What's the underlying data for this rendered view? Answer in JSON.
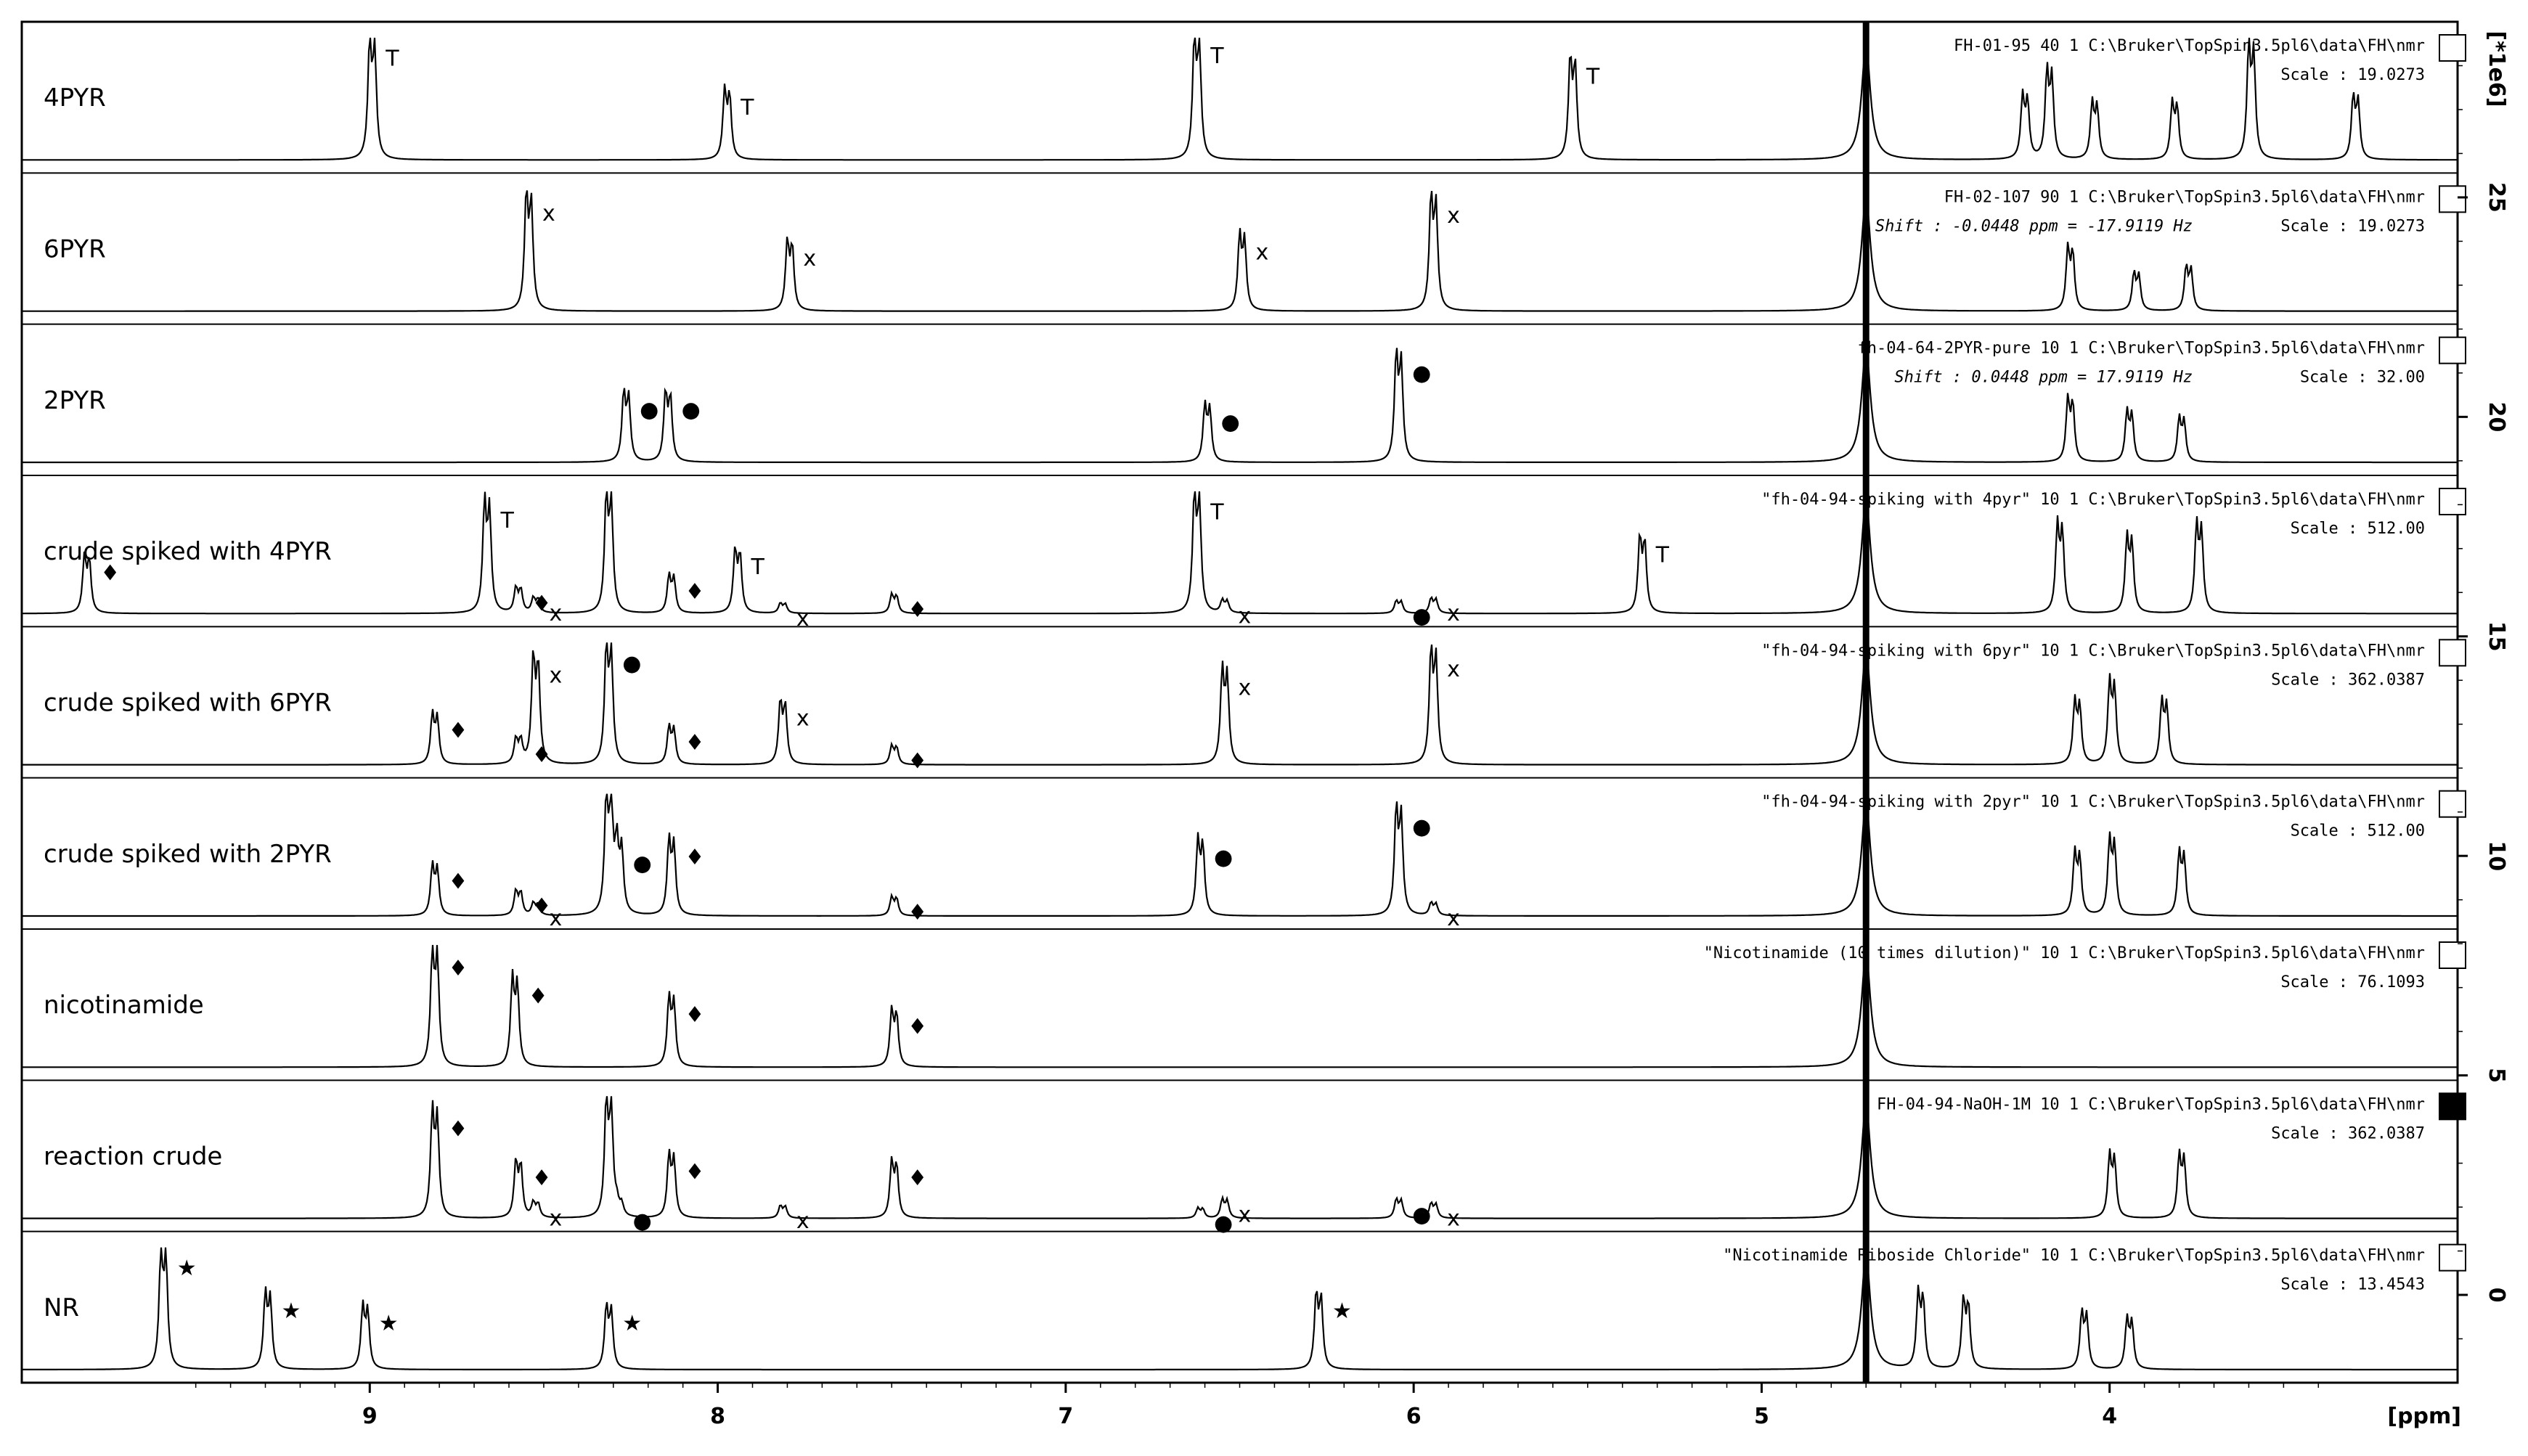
{
  "chart_data": {
    "type": "line",
    "title": "",
    "xlabel": "[ppm]",
    "ylabel": "[*1e6]",
    "xlim": [
      10.0,
      3.0
    ],
    "ylim": [
      -2,
      29
    ],
    "x_ticks": [
      "9",
      "8",
      "7",
      "6",
      "5",
      "4"
    ],
    "y_ticks": [
      "0",
      "5",
      "10",
      "15",
      "20",
      "25"
    ],
    "solvent_peak_ppm": 4.7,
    "traces": [
      {
        "label": "4PYR",
        "header": "FH-01-95  40  1  C:\\Bruker\\TopSpin3.5pl6\\data\\FH\\nmr",
        "scale": "Scale : 19.0273",
        "peaks": [
          {
            "ppm": 9.0,
            "h": 0.95,
            "mark": "T"
          },
          {
            "ppm": 7.98,
            "h": 0.55,
            "mark": "T"
          },
          {
            "ppm": 6.63,
            "h": 0.97,
            "mark": "T"
          },
          {
            "ppm": 5.55,
            "h": 0.8,
            "mark": "T"
          },
          {
            "ppm": 4.25,
            "h": 0.5,
            "mark": ""
          },
          {
            "ppm": 4.18,
            "h": 0.7,
            "mark": ""
          },
          {
            "ppm": 4.05,
            "h": 0.45,
            "mark": ""
          },
          {
            "ppm": 3.82,
            "h": 0.45,
            "mark": ""
          },
          {
            "ppm": 3.6,
            "h": 0.9,
            "mark": ""
          },
          {
            "ppm": 3.3,
            "h": 0.5,
            "mark": ""
          }
        ]
      },
      {
        "label": "6PYR",
        "header": "FH-02-107  90  1  C:\\Bruker\\TopSpin3.5pl6\\data\\FH\\nmr",
        "scale": "Scale : 19.0273",
        "shift": "Shift : -0.0448 ppm = -17.9119 Hz",
        "peaks": [
          {
            "ppm": 8.55,
            "h": 0.92,
            "mark": "x"
          },
          {
            "ppm": 7.8,
            "h": 0.55,
            "mark": "x"
          },
          {
            "ppm": 6.5,
            "h": 0.6,
            "mark": "x"
          },
          {
            "ppm": 5.95,
            "h": 0.9,
            "mark": "x"
          },
          {
            "ppm": 4.12,
            "h": 0.5,
            "mark": ""
          },
          {
            "ppm": 3.93,
            "h": 0.3,
            "mark": ""
          },
          {
            "ppm": 3.78,
            "h": 0.35,
            "mark": ""
          }
        ]
      },
      {
        "label": "2PYR",
        "header": "fh-04-64-2PYR-pure  10  1  C:\\Bruker\\TopSpin3.5pl6\\data\\FH\\nmr",
        "scale": "Scale : 32.00",
        "shift": "Shift : 0.0448 ppm = 17.9119 Hz",
        "peaks": [
          {
            "ppm": 8.27,
            "h": 0.55,
            "mark": "●"
          },
          {
            "ppm": 8.15,
            "h": 0.55,
            "mark": "●"
          },
          {
            "ppm": 6.6,
            "h": 0.45,
            "mark": "●"
          },
          {
            "ppm": 6.05,
            "h": 0.85,
            "mark": "●"
          },
          {
            "ppm": 4.12,
            "h": 0.5,
            "mark": ""
          },
          {
            "ppm": 3.95,
            "h": 0.4,
            "mark": ""
          },
          {
            "ppm": 3.8,
            "h": 0.35,
            "mark": ""
          }
        ]
      },
      {
        "label": "crude spiked with 4PYR",
        "header": "\"fh-04-94-spiking with 4pyr\"  10  1  C:\\Bruker\\TopSpin3.5pl6\\data\\FH\\nmr",
        "scale": "Scale : 512.00",
        "peaks": [
          {
            "ppm": 9.82,
            "h": 0.45,
            "mark": "♦"
          },
          {
            "ppm": 8.67,
            "h": 0.88,
            "mark": "T"
          },
          {
            "ppm": 8.58,
            "h": 0.2,
            "mark": "♦"
          },
          {
            "ppm": 8.53,
            "h": 0.12,
            "mark": "x"
          },
          {
            "ppm": 8.32,
            "h": 0.95,
            "mark": ""
          },
          {
            "ppm": 8.14,
            "h": 0.3,
            "mark": "♦"
          },
          {
            "ppm": 7.95,
            "h": 0.5,
            "mark": "T"
          },
          {
            "ppm": 7.82,
            "h": 0.08,
            "mark": "x"
          },
          {
            "ppm": 7.5,
            "h": 0.15,
            "mark": "♦"
          },
          {
            "ppm": 6.63,
            "h": 0.95,
            "mark": "T"
          },
          {
            "ppm": 6.55,
            "h": 0.1,
            "mark": "x"
          },
          {
            "ppm": 6.05,
            "h": 0.1,
            "mark": "●"
          },
          {
            "ppm": 5.95,
            "h": 0.12,
            "mark": "x"
          },
          {
            "ppm": 5.35,
            "h": 0.6,
            "mark": "T"
          },
          {
            "ppm": 4.15,
            "h": 0.7,
            "mark": ""
          },
          {
            "ppm": 3.95,
            "h": 0.6,
            "mark": ""
          },
          {
            "ppm": 3.75,
            "h": 0.7,
            "mark": ""
          }
        ]
      },
      {
        "label": "crude spiked with 6PYR",
        "header": "\"fh-04-94-spiking with 6pyr\"  10  1  C:\\Bruker\\TopSpin3.5pl6\\data\\FH\\nmr",
        "scale": "Scale : 362.0387",
        "peaks": [
          {
            "ppm": 8.82,
            "h": 0.4,
            "mark": "♦"
          },
          {
            "ppm": 8.58,
            "h": 0.2,
            "mark": "♦"
          },
          {
            "ppm": 8.53,
            "h": 0.85,
            "mark": "x"
          },
          {
            "ppm": 8.32,
            "h": 0.95,
            "mark": "●"
          },
          {
            "ppm": 8.14,
            "h": 0.3,
            "mark": "♦"
          },
          {
            "ppm": 7.82,
            "h": 0.5,
            "mark": "x"
          },
          {
            "ppm": 7.5,
            "h": 0.15,
            "mark": "♦"
          },
          {
            "ppm": 6.55,
            "h": 0.75,
            "mark": "x"
          },
          {
            "ppm": 5.95,
            "h": 0.9,
            "mark": "x"
          },
          {
            "ppm": 4.1,
            "h": 0.5,
            "mark": ""
          },
          {
            "ppm": 4.0,
            "h": 0.65,
            "mark": ""
          },
          {
            "ppm": 3.85,
            "h": 0.5,
            "mark": ""
          }
        ]
      },
      {
        "label": "crude spiked with 2PYR",
        "header": "\"fh-04-94-spiking with 2pyr\"  10  1  C:\\Bruker\\TopSpin3.5pl6\\data\\FH\\nmr",
        "scale": "Scale : 512.00",
        "peaks": [
          {
            "ppm": 8.82,
            "h": 0.4,
            "mark": "♦"
          },
          {
            "ppm": 8.58,
            "h": 0.2,
            "mark": "♦"
          },
          {
            "ppm": 8.53,
            "h": 0.1,
            "mark": "x"
          },
          {
            "ppm": 8.32,
            "h": 0.95,
            "mark": ""
          },
          {
            "ppm": 8.29,
            "h": 0.55,
            "mark": "●"
          },
          {
            "ppm": 8.14,
            "h": 0.6,
            "mark": "♦"
          },
          {
            "ppm": 7.5,
            "h": 0.15,
            "mark": "♦"
          },
          {
            "ppm": 6.62,
            "h": 0.6,
            "mark": "●"
          },
          {
            "ppm": 6.05,
            "h": 0.85,
            "mark": "●"
          },
          {
            "ppm": 5.95,
            "h": 0.1,
            "mark": "x"
          },
          {
            "ppm": 4.1,
            "h": 0.5,
            "mark": ""
          },
          {
            "ppm": 4.0,
            "h": 0.6,
            "mark": ""
          },
          {
            "ppm": 3.8,
            "h": 0.5,
            "mark": ""
          }
        ]
      },
      {
        "label": "nicotinamide",
        "header": "\"Nicotinamide (10 times dilution)\"  10  1  C:\\Bruker\\TopSpin3.5pl6\\data\\FH\\nmr",
        "scale": "Scale : 76.1093",
        "peaks": [
          {
            "ppm": 8.82,
            "h": 0.93,
            "mark": "♦"
          },
          {
            "ppm": 8.59,
            "h": 0.7,
            "mark": "♦"
          },
          {
            "ppm": 8.14,
            "h": 0.55,
            "mark": "♦"
          },
          {
            "ppm": 7.5,
            "h": 0.45,
            "mark": "♦"
          }
        ]
      },
      {
        "label": "reaction crude",
        "header": "FH-04-94-NaOH-1M  10  1  C:\\Bruker\\TopSpin3.5pl6\\data\\FH\\nmr",
        "scale": "Scale : 362.0387",
        "peaks": [
          {
            "ppm": 8.82,
            "h": 0.85,
            "mark": "♦"
          },
          {
            "ppm": 8.58,
            "h": 0.45,
            "mark": "♦"
          },
          {
            "ppm": 8.53,
            "h": 0.12,
            "mark": "x"
          },
          {
            "ppm": 8.32,
            "h": 0.95,
            "mark": ""
          },
          {
            "ppm": 8.29,
            "h": 0.1,
            "mark": "●"
          },
          {
            "ppm": 8.14,
            "h": 0.5,
            "mark": "♦"
          },
          {
            "ppm": 7.82,
            "h": 0.1,
            "mark": "x"
          },
          {
            "ppm": 7.5,
            "h": 0.45,
            "mark": "♦"
          },
          {
            "ppm": 6.62,
            "h": 0.08,
            "mark": "●"
          },
          {
            "ppm": 6.55,
            "h": 0.15,
            "mark": "x"
          },
          {
            "ppm": 6.05,
            "h": 0.15,
            "mark": "●"
          },
          {
            "ppm": 5.95,
            "h": 0.12,
            "mark": "x"
          },
          {
            "ppm": 4.0,
            "h": 0.5,
            "mark": ""
          },
          {
            "ppm": 3.8,
            "h": 0.5,
            "mark": ""
          }
        ]
      },
      {
        "label": "NR",
        "header": "\"Nicotinamide Riboside Chloride\"  10  1  C:\\Bruker\\TopSpin3.5pl6\\data\\FH\\nmr",
        "scale": "Scale : 13.4543",
        "peaks": [
          {
            "ppm": 9.6,
            "h": 0.95,
            "mark": "★"
          },
          {
            "ppm": 9.3,
            "h": 0.6,
            "mark": "★"
          },
          {
            "ppm": 9.02,
            "h": 0.5,
            "mark": "★"
          },
          {
            "ppm": 8.32,
            "h": 0.5,
            "mark": "★"
          },
          {
            "ppm": 6.28,
            "h": 0.6,
            "mark": "★"
          },
          {
            "ppm": 4.55,
            "h": 0.6,
            "mark": ""
          },
          {
            "ppm": 4.42,
            "h": 0.55,
            "mark": ""
          },
          {
            "ppm": 4.08,
            "h": 0.45,
            "mark": ""
          },
          {
            "ppm": 3.95,
            "h": 0.4,
            "mark": ""
          }
        ]
      }
    ]
  }
}
